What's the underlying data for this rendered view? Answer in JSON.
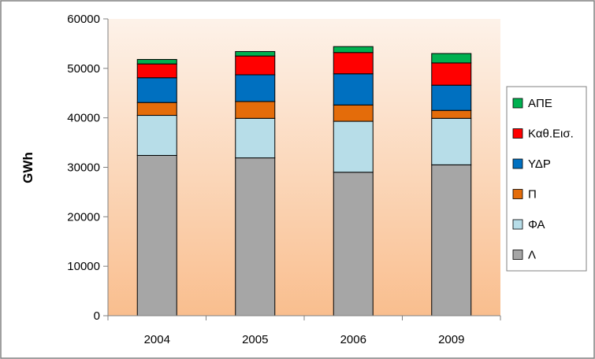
{
  "chart_data": {
    "type": "bar",
    "stacked": true,
    "categories": [
      "2004",
      "2005",
      "2006",
      "2009"
    ],
    "ylabel": "GWh",
    "xlabel": "",
    "ylim": [
      0,
      60000
    ],
    "yticks": [
      "0",
      "10000",
      "20000",
      "30000",
      "40000",
      "50000",
      "60000"
    ],
    "grid": false,
    "legend_position": "right",
    "series": [
      {
        "name": "Λ",
        "color": "#a6a6a6",
        "values": [
          32400,
          31900,
          29000,
          30500
        ]
      },
      {
        "name": "ΦΑ",
        "color": "#b7dde8",
        "values": [
          8100,
          8000,
          10300,
          9400
        ]
      },
      {
        "name": "Π",
        "color": "#e46c0a",
        "values": [
          2600,
          3400,
          3300,
          1600
        ]
      },
      {
        "name": "ΥΔΡ",
        "color": "#0070c0",
        "values": [
          5000,
          5400,
          6300,
          5100
        ]
      },
      {
        "name": "Καθ.Εισ.",
        "color": "#ff0000",
        "values": [
          2800,
          3800,
          4300,
          4500
        ]
      },
      {
        "name": "ΑΠΕ",
        "color": "#00b050",
        "values": [
          900,
          900,
          1200,
          1900
        ]
      }
    ],
    "plot_gradient": [
      "#fdf2e9",
      "#f9be8e"
    ]
  }
}
